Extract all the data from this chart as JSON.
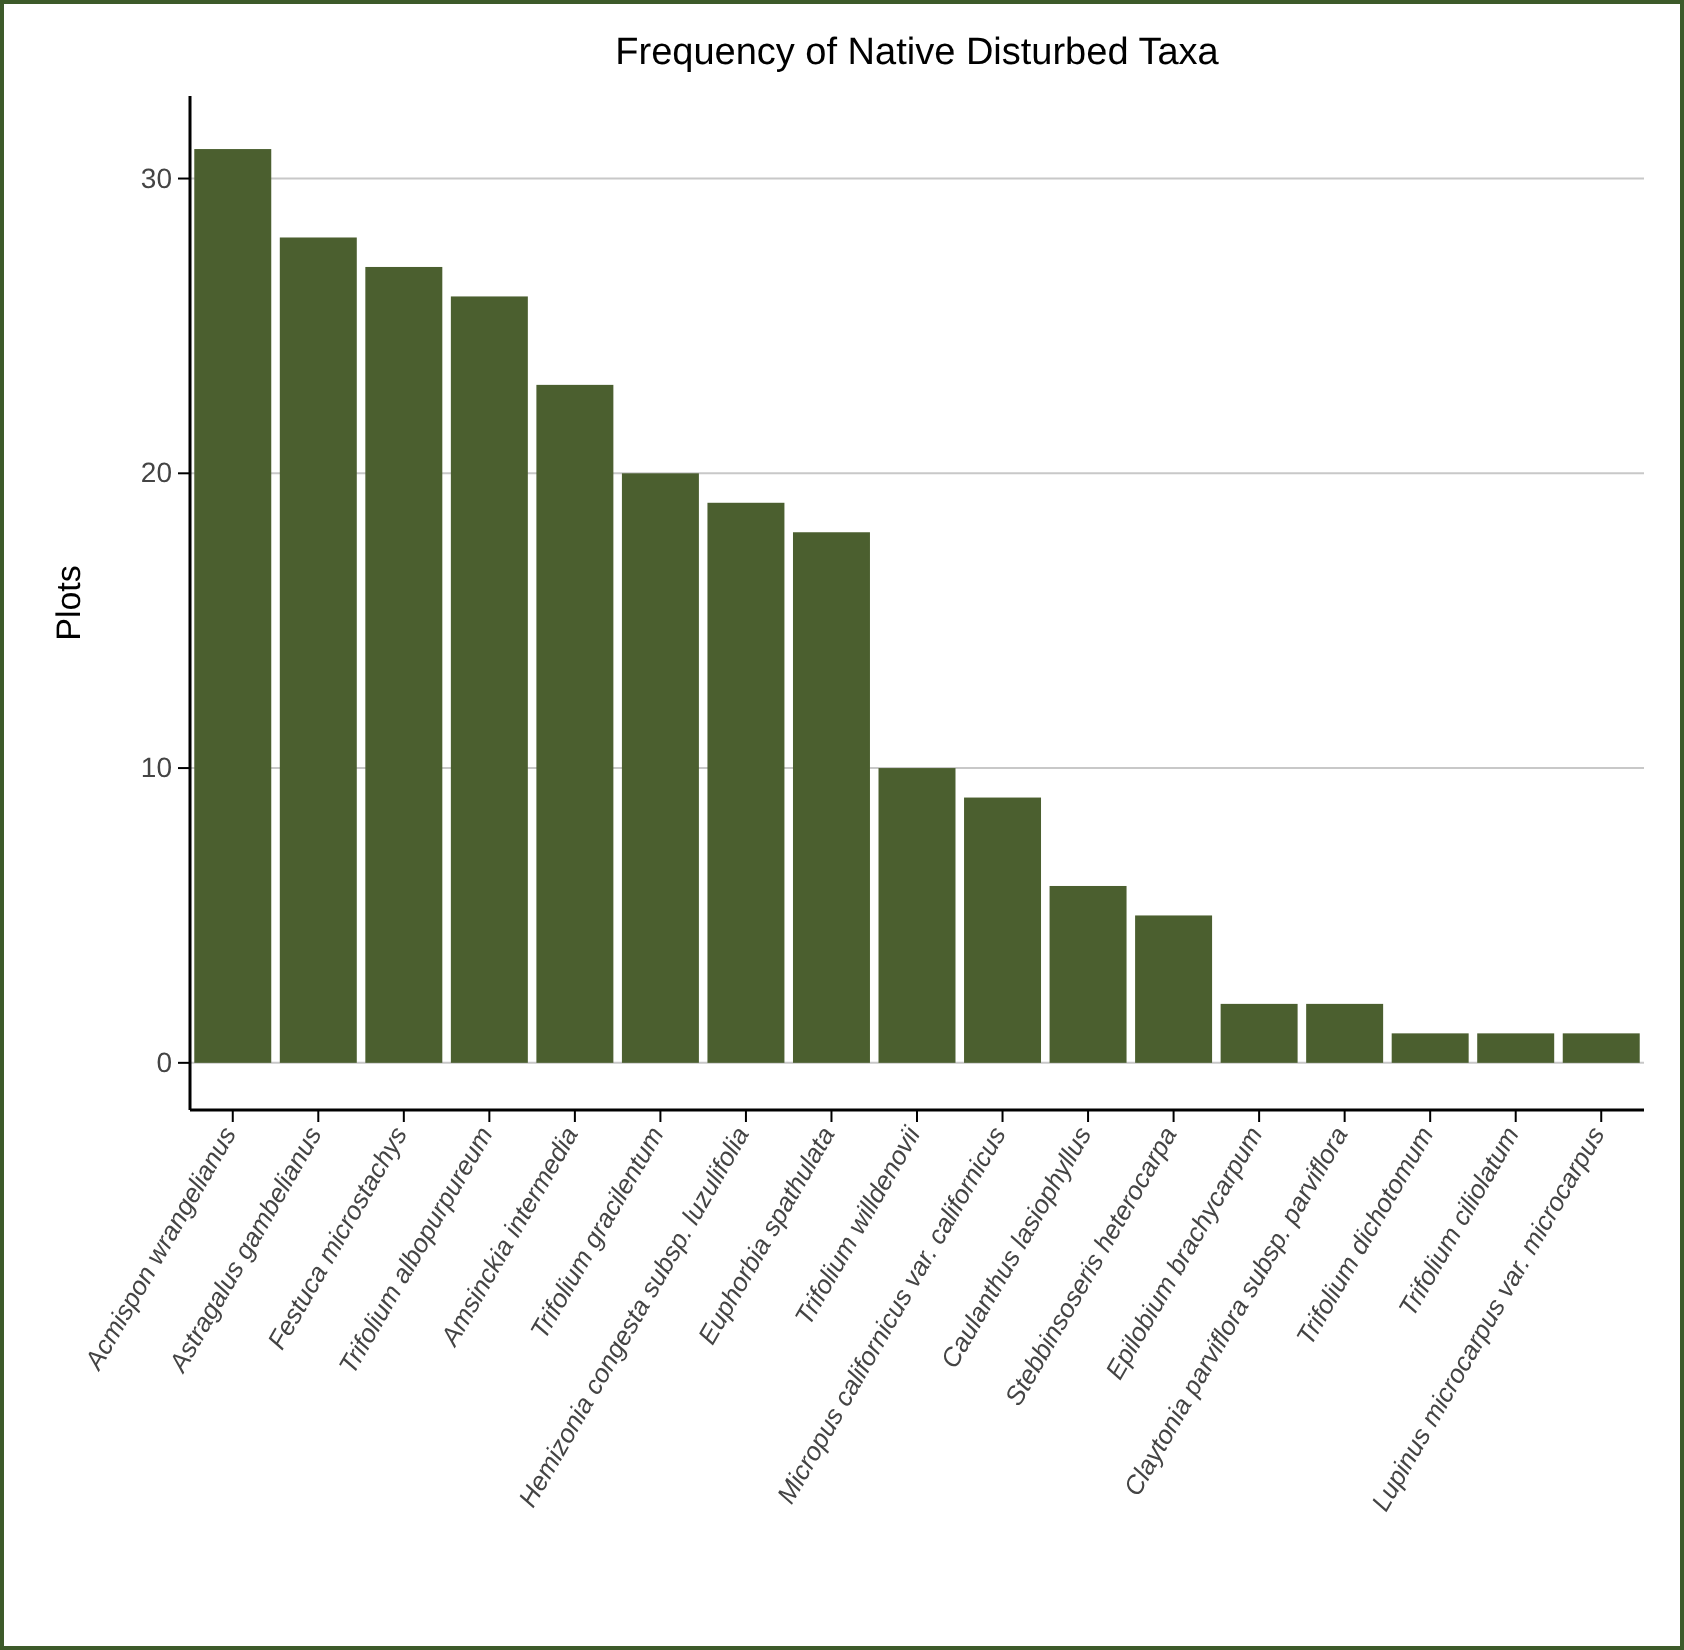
{
  "chart_data": {
    "type": "bar",
    "title": "Frequency of Native Disturbed Taxa",
    "ylabel": "Plots",
    "categories": [
      "Acmispon wrangelianus",
      "Astragalus gambelianus",
      "Festuca microstachys",
      "Trifolium albopurpureum",
      "Amsinckia intermedia",
      "Trifolium gracilentum",
      "Hemizonia congesta subsp. luzulifolia",
      "Euphorbia spathulata",
      "Trifolium willdenovii",
      "Micropus californicus var. californicus",
      "Caulanthus lasiophyllus",
      "Stebbinsoseris heterocarpa",
      "Epilobium brachycarpum",
      "Claytonia parviflora subsp. parviflora",
      "Trifolium dichotomum",
      "Trifolium ciliolatum",
      "Lupinus microcarpus var. microcarpus"
    ],
    "values": [
      31,
      28,
      27,
      26,
      23,
      20,
      19,
      18,
      10,
      9,
      6,
      5,
      2,
      2,
      1,
      1,
      1
    ],
    "color": "#4b5f2f",
    "ylim": [
      -1.6,
      32.8
    ],
    "yticks": [
      0,
      10,
      20,
      30
    ],
    "grid": "y"
  }
}
